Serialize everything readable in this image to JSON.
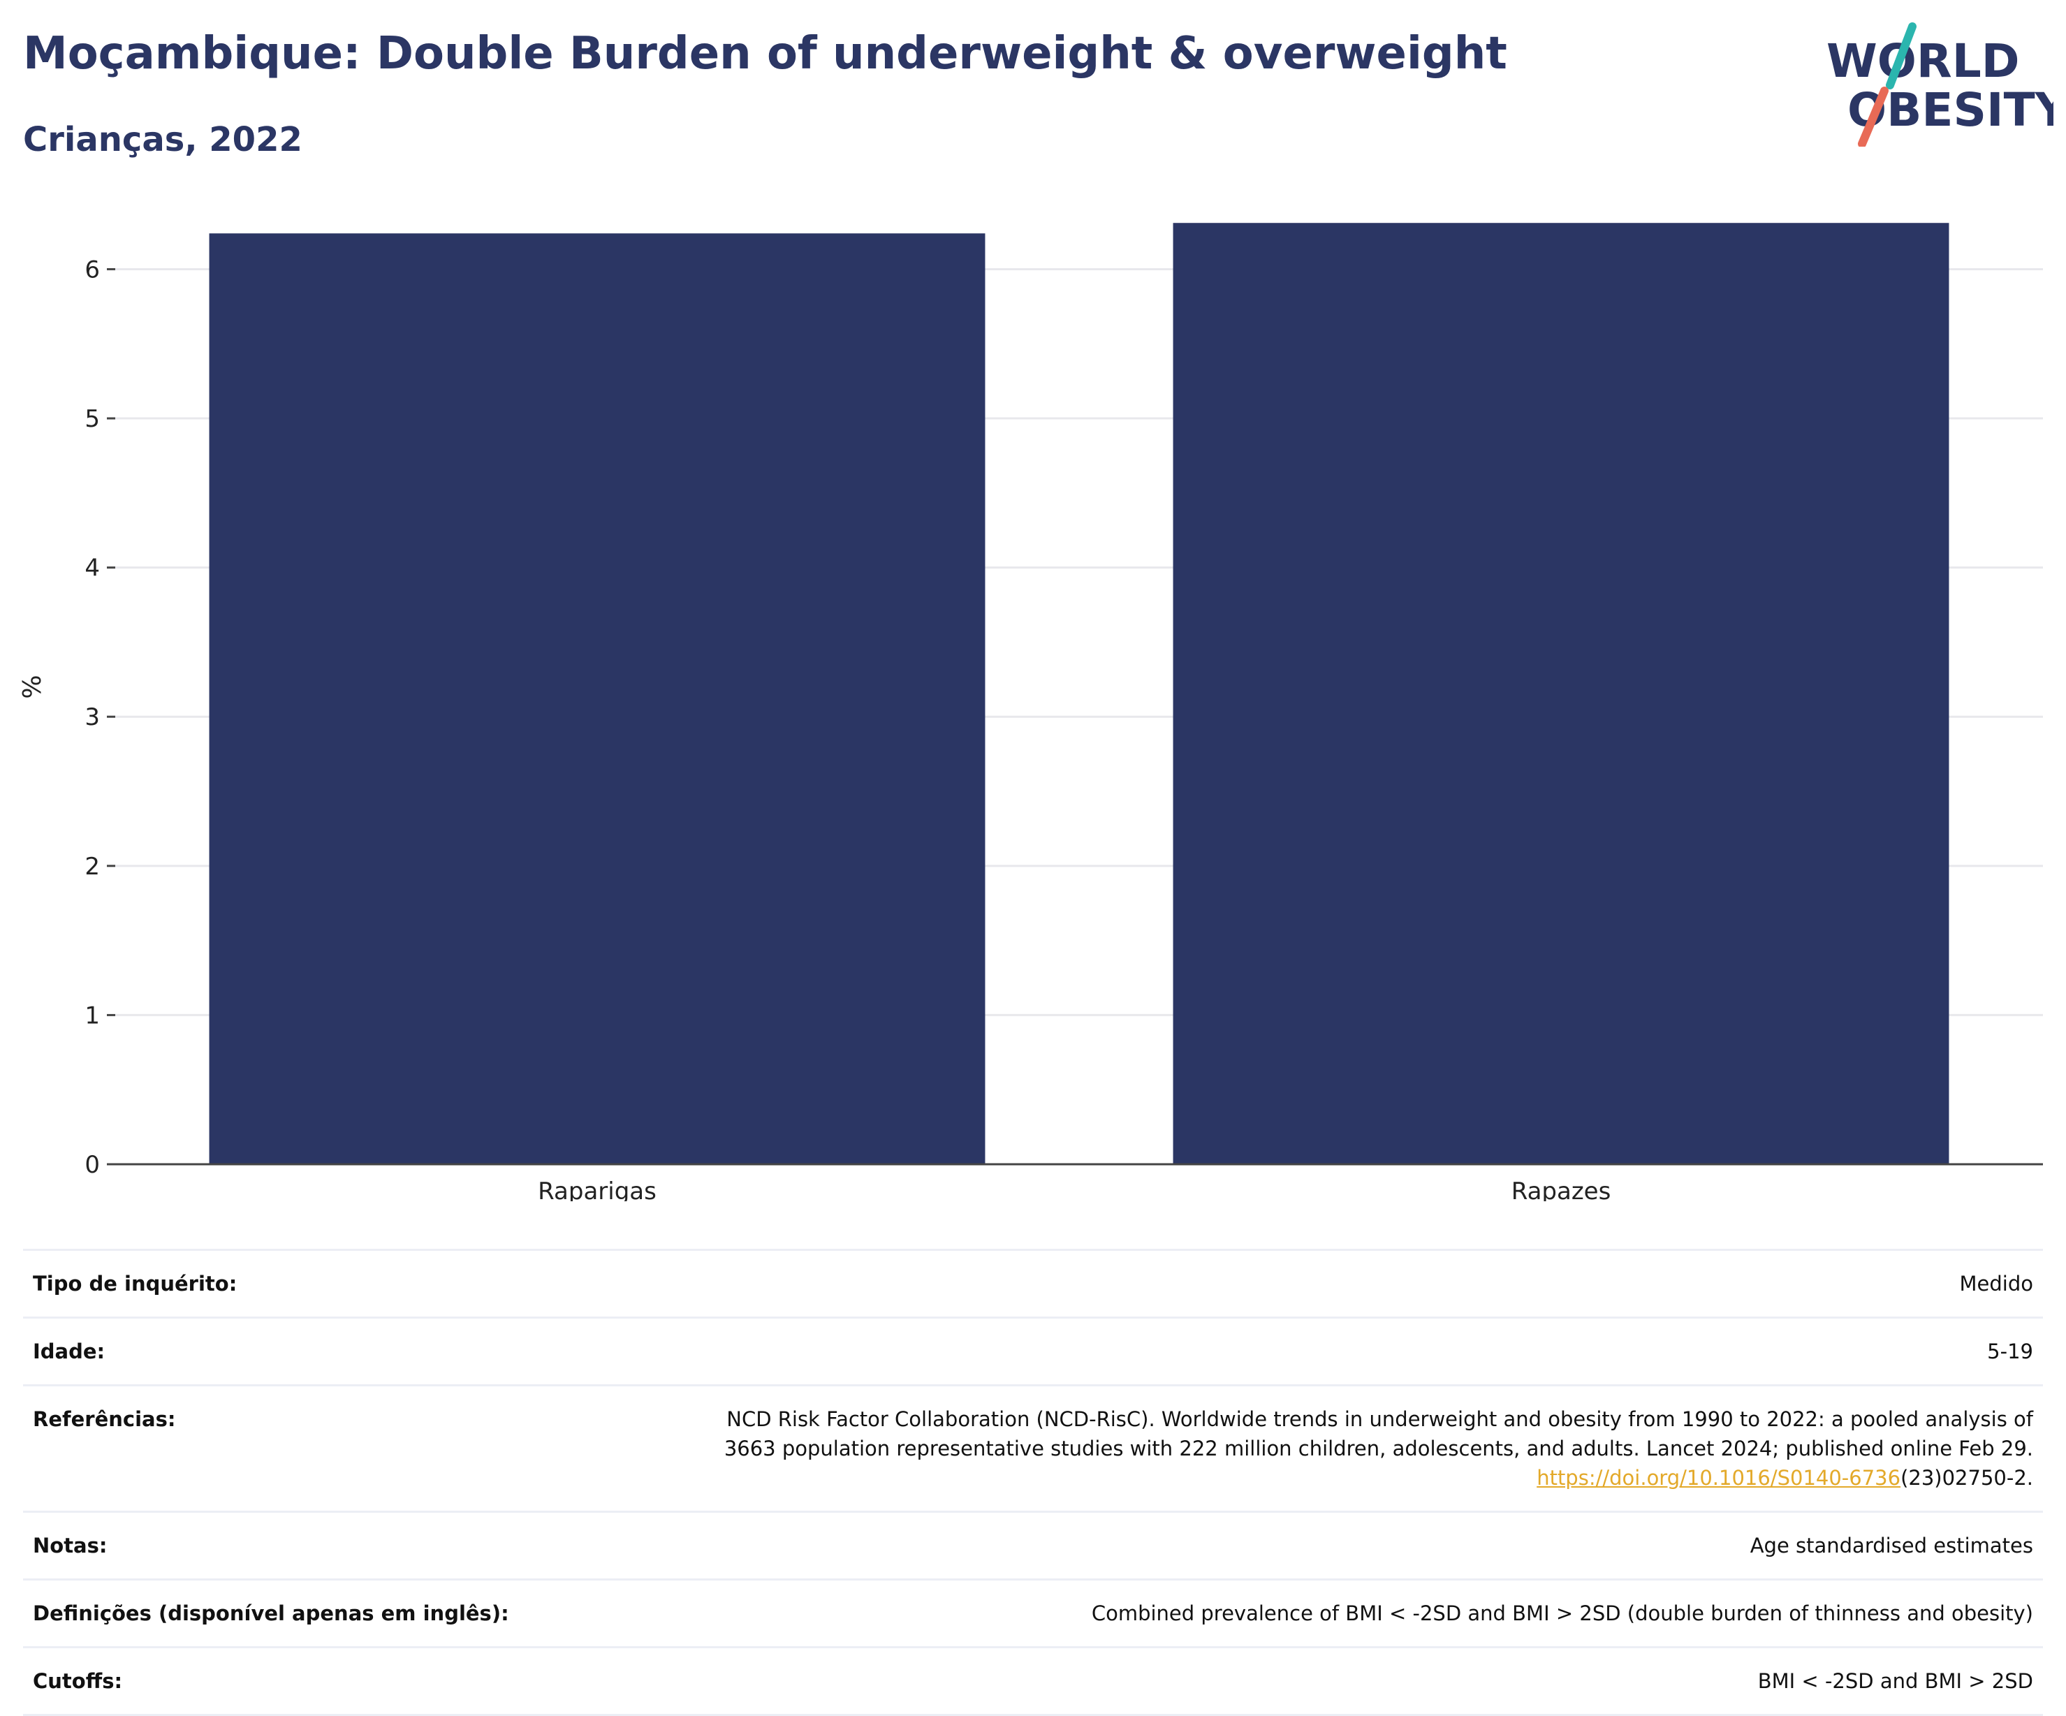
{
  "header": {
    "title": "Moçambique: Double Burden of underweight & overweight",
    "subtitle": "Crianças, 2022"
  },
  "logo": {
    "line1": "WORLD",
    "line2": "OBESITY"
  },
  "colors": {
    "bar": "#2b3664",
    "title": "#2b3664",
    "link": "#e3a92a",
    "logo_teal": "#2bb5ae",
    "logo_coral": "#e86a56"
  },
  "chart_data": {
    "type": "bar",
    "categories": [
      "Raparigas",
      "Rapazes"
    ],
    "values": [
      6.24,
      6.31
    ],
    "ylabel": "%",
    "xlabel": "",
    "ylim": [
      0,
      6.4
    ],
    "yticks": [
      0,
      1,
      2,
      3,
      4,
      5,
      6
    ],
    "grid": true,
    "legend": "none"
  },
  "info": {
    "survey_type": {
      "label": "Tipo de inquérito:",
      "value": "Medido"
    },
    "age": {
      "label": "Idade:",
      "value": "5-19"
    },
    "references": {
      "label": "Referências:",
      "line1": "NCD Risk Factor Collaboration (NCD-RisC). Worldwide trends in underweight and obesity from 1990 to 2022: a pooled analysis of",
      "line2": "3663 population representative studies with 222 million children, adolescents, and adults. Lancet 2024; published online Feb 29.",
      "link": "https://doi.org/10.1016/S0140-6736",
      "link_suffix": "(23)02750-2."
    },
    "notes": {
      "label": "Notas:",
      "value": "Age standardised estimates"
    },
    "definitions": {
      "label": "Definições (disponível apenas em inglês):",
      "value": "Combined prevalence of BMI < -2SD and BMI > 2SD (double burden of thinness and obesity)"
    },
    "cutoffs": {
      "label": "Cutoffs:",
      "value": "BMI < -2SD and BMI > 2SD"
    }
  }
}
